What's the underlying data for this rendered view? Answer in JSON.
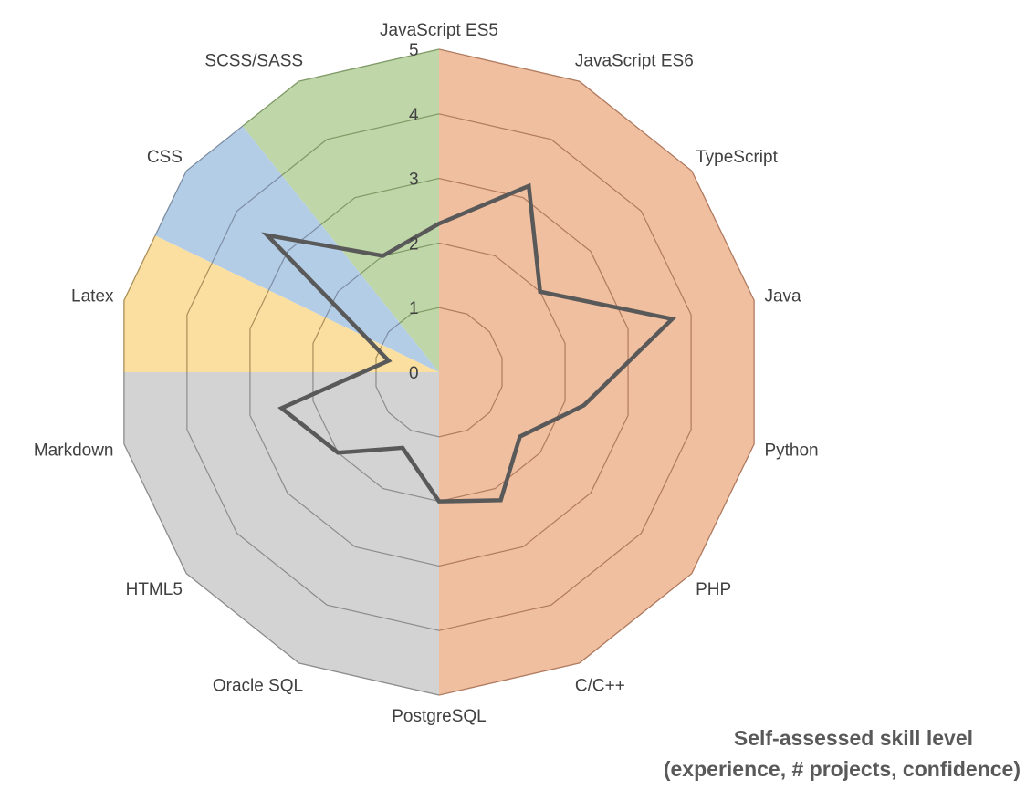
{
  "chart_data": {
    "type": "radar",
    "title_lines": [
      "Self-assessed skill level",
      "(experience, # projects, confidence)"
    ],
    "categories": [
      "JavaScript ES5",
      "JavaScript ES6",
      "TypeScript",
      "Java",
      "Python",
      "PHP",
      "C/C++",
      "PostgreSQL",
      "Oracle SQL",
      "HTML5",
      "Markdown",
      "Latex",
      "CSS",
      "SCSS/SASS"
    ],
    "rlim": [
      0,
      5
    ],
    "ticks": [
      "0",
      "1",
      "2",
      "3",
      "4",
      "5"
    ],
    "grid": true,
    "series": [
      {
        "values": [
          2.3,
          3.2,
          2.0,
          3.7,
          2.3,
          1.6,
          2.2,
          2.0,
          1.3,
          2.0,
          2.5,
          0.8,
          3.4,
          2.0
        ],
        "color": "#595959"
      }
    ],
    "background_sectors": [
      {
        "from": 0,
        "to": 7,
        "color": "#f0bfa0"
      },
      {
        "from": 7,
        "to": 10.5,
        "color": "#d3d3d3"
      },
      {
        "from": 10.5,
        "to": 11.5,
        "color": "#fbdfa0"
      },
      {
        "from": 11.5,
        "to": 12.5,
        "color": "#b4cde6"
      },
      {
        "from": 12.5,
        "to": 14,
        "color": "#bfd6a8"
      }
    ],
    "grid_color_by_sector": [
      "#b07a5f",
      "#8c8c8c",
      "#a88f5a",
      "#7d8ea3",
      "#7f9a66"
    ]
  }
}
